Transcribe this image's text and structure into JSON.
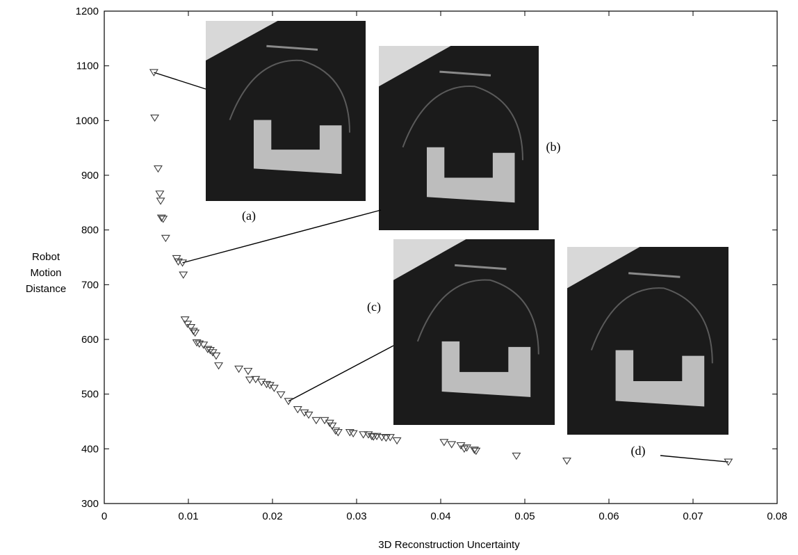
{
  "chart_data": {
    "type": "scatter",
    "xlabel": "3D Reconstruction Uncertainty",
    "ylabel_lines": [
      "Robot",
      "Motion",
      "Distance"
    ],
    "xlim": [
      0,
      0.08
    ],
    "ylim": [
      300,
      1200
    ],
    "x_ticks": [
      "0",
      "0.01",
      "0.02",
      "0.03",
      "0.04",
      "0.05",
      "0.06",
      "0.07",
      "0.08"
    ],
    "y_ticks": [
      "300",
      "400",
      "500",
      "600",
      "700",
      "800",
      "900",
      "1000",
      "1100",
      "1200"
    ],
    "grid": false,
    "marker": "triangle-down",
    "points": [
      [
        0.0059,
        1088
      ],
      [
        0.006,
        1005
      ],
      [
        0.0064,
        912
      ],
      [
        0.0066,
        866
      ],
      [
        0.0067,
        853
      ],
      [
        0.0068,
        822
      ],
      [
        0.007,
        820
      ],
      [
        0.0073,
        785
      ],
      [
        0.0086,
        748
      ],
      [
        0.0088,
        742
      ],
      [
        0.0093,
        740
      ],
      [
        0.0094,
        718
      ],
      [
        0.0096,
        636
      ],
      [
        0.0099,
        628
      ],
      [
        0.0103,
        622
      ],
      [
        0.0106,
        615
      ],
      [
        0.0108,
        612
      ],
      [
        0.011,
        594
      ],
      [
        0.0113,
        592
      ],
      [
        0.0118,
        590
      ],
      [
        0.0123,
        582
      ],
      [
        0.0126,
        580
      ],
      [
        0.0129,
        576
      ],
      [
        0.0133,
        570
      ],
      [
        0.0136,
        552
      ],
      [
        0.016,
        546
      ],
      [
        0.0171,
        542
      ],
      [
        0.0173,
        526
      ],
      [
        0.018,
        527
      ],
      [
        0.0187,
        522
      ],
      [
        0.0193,
        518
      ],
      [
        0.0197,
        516
      ],
      [
        0.0202,
        511
      ],
      [
        0.021,
        499
      ],
      [
        0.0219,
        487
      ],
      [
        0.023,
        472
      ],
      [
        0.0238,
        466
      ],
      [
        0.0243,
        462
      ],
      [
        0.0252,
        452
      ],
      [
        0.0262,
        452
      ],
      [
        0.0268,
        447
      ],
      [
        0.0271,
        442
      ],
      [
        0.0275,
        433
      ],
      [
        0.0278,
        430
      ],
      [
        0.0292,
        430
      ],
      [
        0.0296,
        428
      ],
      [
        0.0308,
        426
      ],
      [
        0.0314,
        426
      ],
      [
        0.0318,
        423
      ],
      [
        0.032,
        422
      ],
      [
        0.0324,
        423
      ],
      [
        0.033,
        421
      ],
      [
        0.0335,
        420
      ],
      [
        0.034,
        421
      ],
      [
        0.0348,
        415
      ],
      [
        0.0404,
        412
      ],
      [
        0.0413,
        408
      ],
      [
        0.0424,
        406
      ],
      [
        0.0428,
        400
      ],
      [
        0.0431,
        402
      ],
      [
        0.044,
        398
      ],
      [
        0.0442,
        396
      ],
      [
        0.049,
        387
      ],
      [
        0.055,
        378
      ],
      [
        0.0742,
        376
      ]
    ],
    "annotations": [
      {
        "label": "(a)",
        "point": [
          0.0059,
          1088
        ]
      },
      {
        "label": "(b)",
        "point": [
          0.0093,
          740
        ]
      },
      {
        "label": "(c)",
        "point": [
          0.0219,
          487
        ]
      },
      {
        "label": "(d)",
        "point": [
          0.0742,
          376
        ]
      }
    ]
  },
  "colors": {
    "axis": "#000000",
    "marker_stroke": "#3a3a3a",
    "inset_bg": "#1b1b1b",
    "inset_block": "#bdbdbd"
  }
}
